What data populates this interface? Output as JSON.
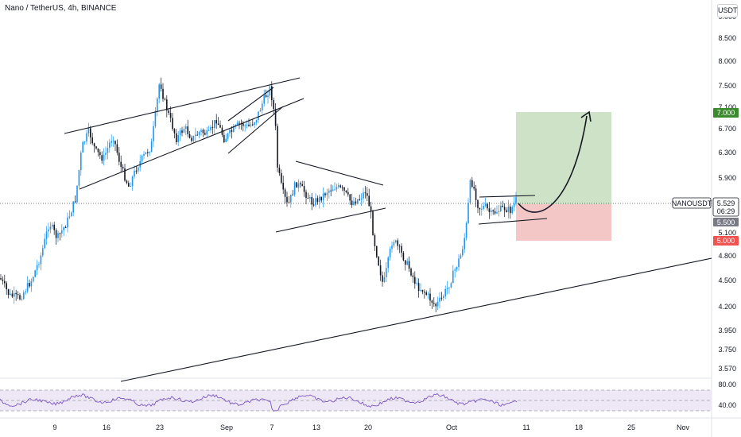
{
  "header": {
    "symbol_title": "Nano / TetherUS, 4h, BINANCE",
    "currency_button": "USDT"
  },
  "price_axis": {
    "ticks": [
      "9.000",
      "8.500",
      "8.000",
      "7.500",
      "7.100",
      "6.700",
      "6.300",
      "5.900",
      "5.100",
      "4.800",
      "4.500",
      "4.200",
      "3.950",
      "3.750",
      "3.570"
    ]
  },
  "time_axis": {
    "ticks": [
      "9",
      "16",
      "23",
      "Sep",
      "7",
      "13",
      "20",
      "Oct",
      "11",
      "18",
      "25",
      "Nov"
    ]
  },
  "rsi_axis": {
    "ticks": [
      "80.00",
      "40.00"
    ]
  },
  "badges": {
    "symbol_name": "NANOUSDT",
    "last_price": "5.529",
    "countdown": "06:29",
    "entry": "5.500",
    "target": "7.000",
    "stop": "5.000"
  },
  "colors": {
    "up_candle": "#2196f3",
    "down_candle": "#131722",
    "target_zone": "#c8dfc1",
    "stop_zone": "#f3c1c1",
    "target_badge": "#3c8a2e",
    "stop_badge": "#f05350",
    "rsi_band": "#ede7f6",
    "rsi_line": "#7e57c2"
  }
}
